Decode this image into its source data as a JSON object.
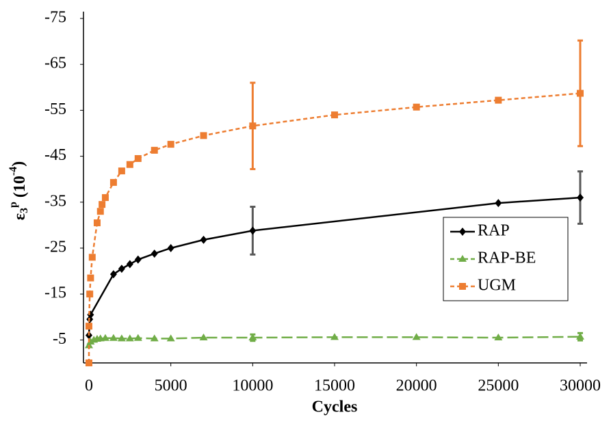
{
  "chart_data": {
    "type": "line",
    "xlabel": "Cycles",
    "ylabel_parts": [
      "ε",
      "3",
      "p",
      " (10",
      "-4",
      ")"
    ],
    "xlim": [
      0,
      30000
    ],
    "xticks": [
      0,
      5000,
      10000,
      15000,
      20000,
      25000,
      30000
    ],
    "ylim": [
      0,
      -75
    ],
    "yticks": [
      -75,
      -65,
      -55,
      -45,
      -35,
      -25,
      -15,
      -5
    ],
    "grid": false,
    "legend": "right",
    "series": [
      {
        "name": "RAP",
        "color": "#000000",
        "line_style": "solid",
        "marker": "diamond",
        "x": [
          0,
          50,
          100,
          1500,
          2000,
          2500,
          3000,
          4000,
          5000,
          7000,
          10000,
          25000,
          30000
        ],
        "values": [
          -6,
          -9.5,
          -10.5,
          -19.3,
          -20.5,
          -21.5,
          -22.5,
          -23.8,
          -25,
          -26.8,
          -28.8,
          -34.8,
          -36
        ],
        "errors": [
          null,
          null,
          null,
          null,
          null,
          null,
          null,
          null,
          null,
          null,
          5.2,
          null,
          5.7
        ],
        "error_color": "#595959"
      },
      {
        "name": "RAP-BE",
        "color": "#70ad47",
        "line_style": "dashed",
        "marker": "triangle",
        "x": [
          0,
          100,
          300,
          500,
          700,
          1000,
          1500,
          2000,
          2500,
          3000,
          4000,
          5000,
          7000,
          10000,
          15000,
          20000,
          25000,
          30000
        ],
        "values": [
          -3.8,
          -4.6,
          -5,
          -5.2,
          -5.3,
          -5.4,
          -5.4,
          -5.3,
          -5.3,
          -5.4,
          -5.3,
          -5.3,
          -5.5,
          -5.5,
          -5.6,
          -5.6,
          -5.5,
          -5.7
        ],
        "errors": [
          null,
          null,
          null,
          null,
          null,
          null,
          null,
          null,
          null,
          null,
          null,
          null,
          null,
          0.7,
          null,
          null,
          null,
          0.8
        ],
        "error_color": "#70ad47"
      },
      {
        "name": "UGM",
        "color": "#ed7d31",
        "line_style": "dashed",
        "marker": "square",
        "x": [
          0,
          0,
          50,
          100,
          200,
          500,
          700,
          800,
          1000,
          1500,
          2000,
          2500,
          3000,
          4000,
          5000,
          7000,
          10000,
          15000,
          20000,
          25000,
          30000
        ],
        "values": [
          0,
          -8,
          -15,
          -18.5,
          -23,
          -30.5,
          -33,
          -34.5,
          -36,
          -39.3,
          -41.8,
          -43.2,
          -44.5,
          -46.3,
          -47.6,
          -49.5,
          -51.6,
          -54,
          -55.7,
          -57.2,
          -58.7
        ],
        "errors": [
          null,
          null,
          null,
          null,
          null,
          null,
          null,
          null,
          null,
          null,
          null,
          null,
          null,
          null,
          null,
          null,
          9.4,
          null,
          null,
          null,
          11.5
        ],
        "error_color": "#ed7d31"
      }
    ]
  }
}
